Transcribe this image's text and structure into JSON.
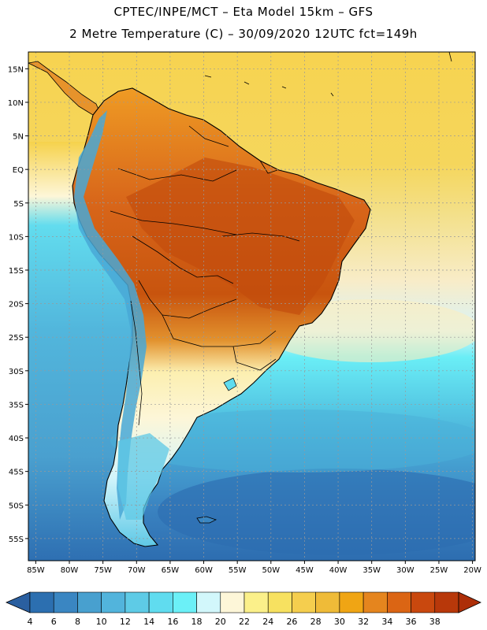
{
  "header": {
    "line1": "CPTEC/INPE/MCT –  Eta Model 15km – GFS",
    "line2": "2 Metre Temperature (C) – 30/09/2020 12UTC fct=149h"
  },
  "map": {
    "lat_labels": [
      "15N",
      "10N",
      "5N",
      "EQ",
      "5S",
      "10S",
      "15S",
      "20S",
      "25S",
      "30S",
      "35S",
      "40S",
      "45S",
      "50S",
      "55S"
    ],
    "lon_labels": [
      "85W",
      "80W",
      "75W",
      "70W",
      "65W",
      "60W",
      "55W",
      "50W",
      "45W",
      "40W",
      "35W",
      "30W",
      "25W",
      "20W"
    ],
    "lat_values": [
      15,
      10,
      5,
      0,
      -5,
      -10,
      -15,
      -20,
      -25,
      -30,
      -35,
      -40,
      -45,
      -50,
      -55
    ],
    "lon_values": [
      -85,
      -80,
      -75,
      -70,
      -65,
      -60,
      -55,
      -50,
      -45,
      -40,
      -35,
      -30,
      -25,
      -20
    ]
  },
  "colorbar": {
    "values": [
      "4",
      "6",
      "8",
      "10",
      "12",
      "14",
      "16",
      "18",
      "20",
      "22",
      "24",
      "26",
      "28",
      "30",
      "32",
      "34",
      "36",
      "38"
    ],
    "colors": [
      "#2c6fb0",
      "#3a86c2",
      "#48a0cf",
      "#52b4dc",
      "#5ecbe6",
      "#60dcef",
      "#6bf0f7",
      "#d2f7fb",
      "#fdf6d8",
      "#fbf08a",
      "#f7e160",
      "#f5ce4e",
      "#efbb38",
      "#f0a514",
      "#e5851e",
      "#db6514",
      "#c9480e",
      "#b8380a"
    ],
    "low_color": "#2a5fa0",
    "high_color": "#ad2e08"
  },
  "legend_fields": {
    "ocean_cold": "#2f72b4",
    "ocean_mid": "#4fb2da",
    "ocean_cool": "#60d6ec",
    "ocean_warm": "#f6d54f",
    "land_hot": "#c7520f",
    "land_warm": "#e8932a",
    "andes_cold": "#49a8d6"
  }
}
